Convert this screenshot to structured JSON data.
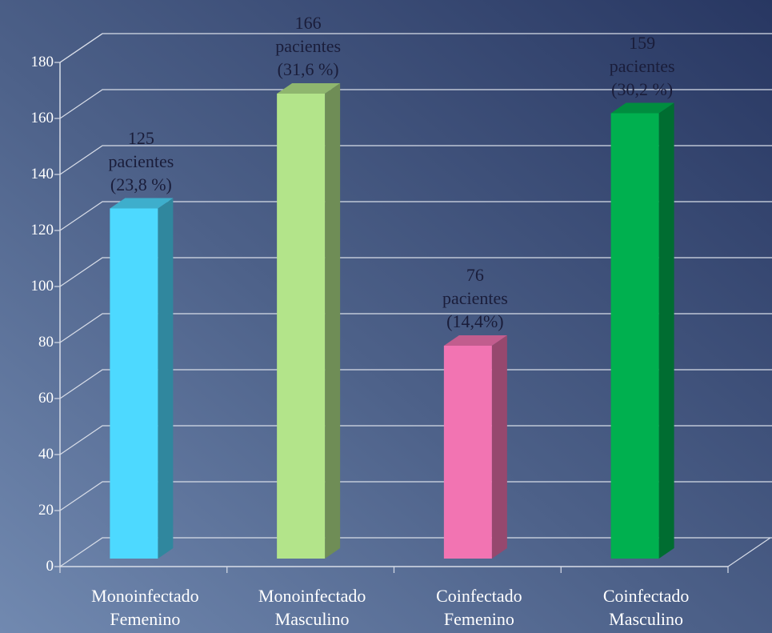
{
  "chart_data": {
    "type": "bar3d",
    "categories": [
      "Monoinfectado\nFemenino",
      "Monoinfectado\nMasculino",
      "Coinfectado\nFemenino",
      "Coinfectado\nMasculino"
    ],
    "values": [
      125,
      166,
      76,
      159
    ],
    "value_labels": [
      "125\npacientes\n(23,8 %)",
      "166\npacientes\n(31,6 %)",
      "76\npacientes\n(14,4%)",
      "159\npacientes\n(30,2 %)"
    ],
    "colors": [
      "#4dd9ff",
      "#b3e48a",
      "#f274b2",
      "#00b04f"
    ],
    "ylim": [
      0,
      180
    ],
    "yticks": [
      0,
      20,
      40,
      60,
      80,
      100,
      120,
      140,
      160,
      180
    ],
    "grid": true
  }
}
